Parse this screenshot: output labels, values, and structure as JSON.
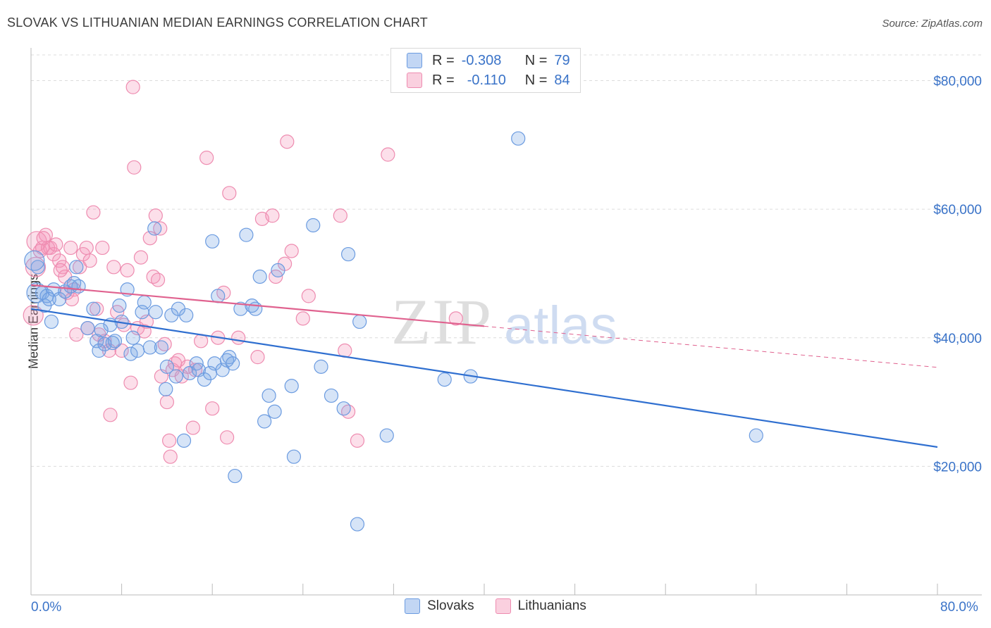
{
  "title": "SLOVAK VS LITHUANIAN MEDIAN EARNINGS CORRELATION CHART",
  "source": "Source: ZipAtlas.com",
  "watermark": "ZIPatlas",
  "colors": {
    "slovak_fill": "rgba(120,165,230,0.30)",
    "slovak_stroke": "#6b9be0",
    "slovak_line": "#2f6fd0",
    "lith_fill": "rgba(245,150,185,0.30)",
    "lith_stroke": "#ee8cb0",
    "lith_line": "#e0628f",
    "axis_text": "#3a73c8",
    "grid": "#dcdcdc"
  },
  "legend": {
    "row1": {
      "r_label": "R =",
      "r_value": "-0.308",
      "n_label": "N =",
      "n_value": "79"
    },
    "row2": {
      "r_label": "R =",
      "r_value": "-0.110",
      "n_label": "N =",
      "n_value": "84"
    }
  },
  "bottom_legend": {
    "series1": "Slovaks",
    "series2": "Lithuanians"
  },
  "chart_data": {
    "type": "scatter",
    "xlabel": "",
    "ylabel": "Median Earnings",
    "xlim": [
      0,
      80
    ],
    "ylim": [
      0,
      84000
    ],
    "x_tick_labels": [
      "0.0%",
      "80.0%"
    ],
    "y_ticks": [
      20000,
      40000,
      60000,
      80000
    ],
    "y_tick_labels": [
      "$20,000",
      "$40,000",
      "$60,000",
      "$80,000"
    ],
    "grid": true,
    "series": [
      {
        "name": "Slovaks",
        "r": -0.308,
        "n": 79,
        "trend": {
          "x": [
            0,
            80
          ],
          "y": [
            44500,
            23000
          ]
        },
        "points": [
          [
            0.5,
            47000
          ],
          [
            0.6,
            51000
          ],
          [
            1.0,
            47000
          ],
          [
            1.2,
            45000
          ],
          [
            1.4,
            46500
          ],
          [
            1.8,
            42500
          ],
          [
            2.0,
            47500
          ],
          [
            2.5,
            46000
          ],
          [
            3.0,
            47200
          ],
          [
            3.5,
            48000
          ],
          [
            4.0,
            51000
          ],
          [
            4.2,
            48000
          ],
          [
            5.0,
            41500
          ],
          [
            5.5,
            44500
          ],
          [
            5.8,
            39500
          ],
          [
            6.0,
            38000
          ],
          [
            6.5,
            39000
          ],
          [
            7.0,
            42000
          ],
          [
            7.4,
            39500
          ],
          [
            7.8,
            45000
          ],
          [
            8.0,
            42500
          ],
          [
            8.5,
            47500
          ],
          [
            8.8,
            37500
          ],
          [
            9.0,
            40000
          ],
          [
            9.4,
            38000
          ],
          [
            9.8,
            44000
          ],
          [
            10.0,
            45500
          ],
          [
            10.5,
            38500
          ],
          [
            10.9,
            57000
          ],
          [
            11.0,
            44000
          ],
          [
            11.5,
            38500
          ],
          [
            11.9,
            32000
          ],
          [
            12.0,
            35500
          ],
          [
            12.4,
            43500
          ],
          [
            12.8,
            34000
          ],
          [
            13.0,
            44500
          ],
          [
            13.5,
            24000
          ],
          [
            13.7,
            43500
          ],
          [
            14.0,
            34500
          ],
          [
            14.6,
            36000
          ],
          [
            14.8,
            35000
          ],
          [
            15.3,
            33500
          ],
          [
            15.8,
            34500
          ],
          [
            16.0,
            55000
          ],
          [
            16.2,
            36000
          ],
          [
            16.5,
            46500
          ],
          [
            16.9,
            35000
          ],
          [
            17.3,
            36500
          ],
          [
            17.5,
            37000
          ],
          [
            17.8,
            36000
          ],
          [
            18.0,
            18500
          ],
          [
            18.5,
            44500
          ],
          [
            19.0,
            56000
          ],
          [
            19.5,
            45000
          ],
          [
            19.8,
            44500
          ],
          [
            20.2,
            49500
          ],
          [
            20.6,
            27000
          ],
          [
            21.0,
            31000
          ],
          [
            21.5,
            28500
          ],
          [
            21.8,
            50500
          ],
          [
            23.0,
            32500
          ],
          [
            23.2,
            21500
          ],
          [
            24.9,
            57500
          ],
          [
            25.6,
            35500
          ],
          [
            26.5,
            31000
          ],
          [
            27.6,
            29000
          ],
          [
            28.0,
            53000
          ],
          [
            28.8,
            11000
          ],
          [
            29.0,
            42500
          ],
          [
            31.4,
            24800
          ],
          [
            36.5,
            33500
          ],
          [
            38.8,
            34000
          ],
          [
            43.0,
            71000
          ],
          [
            64.0,
            24800
          ],
          [
            0.3,
            52000
          ],
          [
            1.6,
            46000
          ],
          [
            3.8,
            48500
          ],
          [
            6.2,
            41200
          ],
          [
            7.2,
            39200
          ]
        ]
      },
      {
        "name": "Lithuanians",
        "r": -0.11,
        "n": 84,
        "trend": {
          "x": [
            0,
            40
          ],
          "y": [
            48200,
            41800
          ]
        },
        "trend_ext": {
          "x": [
            40,
            80
          ],
          "y": [
            41800,
            35400
          ]
        },
        "points": [
          [
            0.2,
            43500
          ],
          [
            0.5,
            55000
          ],
          [
            0.8,
            53500
          ],
          [
            1.0,
            54000
          ],
          [
            1.3,
            56000
          ],
          [
            1.5,
            54000
          ],
          [
            1.7,
            54000
          ],
          [
            2.0,
            53000
          ],
          [
            2.2,
            54500
          ],
          [
            2.5,
            52000
          ],
          [
            2.8,
            51000
          ],
          [
            3.0,
            49500
          ],
          [
            3.2,
            47000
          ],
          [
            3.5,
            54000
          ],
          [
            3.8,
            47500
          ],
          [
            4.0,
            40500
          ],
          [
            4.3,
            51000
          ],
          [
            4.6,
            53000
          ],
          [
            4.9,
            54000
          ],
          [
            5.0,
            41500
          ],
          [
            5.2,
            52000
          ],
          [
            5.5,
            59500
          ],
          [
            5.8,
            44500
          ],
          [
            6.0,
            40500
          ],
          [
            6.3,
            54000
          ],
          [
            6.5,
            39500
          ],
          [
            6.9,
            38000
          ],
          [
            7.0,
            28000
          ],
          [
            7.3,
            51000
          ],
          [
            7.6,
            44000
          ],
          [
            8.0,
            38000
          ],
          [
            8.2,
            42000
          ],
          [
            8.5,
            50500
          ],
          [
            8.8,
            33000
          ],
          [
            9.0,
            79000
          ],
          [
            9.1,
            66500
          ],
          [
            9.4,
            41500
          ],
          [
            9.7,
            52500
          ],
          [
            10.0,
            41000
          ],
          [
            10.2,
            42500
          ],
          [
            10.5,
            55500
          ],
          [
            10.8,
            49500
          ],
          [
            11.0,
            59000
          ],
          [
            11.2,
            49000
          ],
          [
            11.4,
            57000
          ],
          [
            11.5,
            34000
          ],
          [
            11.8,
            39000
          ],
          [
            12.0,
            30000
          ],
          [
            12.2,
            24000
          ],
          [
            12.3,
            21500
          ],
          [
            12.5,
            35000
          ],
          [
            12.7,
            36000
          ],
          [
            13.0,
            36500
          ],
          [
            13.3,
            34000
          ],
          [
            13.8,
            35500
          ],
          [
            14.3,
            26000
          ],
          [
            14.5,
            35000
          ],
          [
            15.0,
            39500
          ],
          [
            15.5,
            68000
          ],
          [
            16.0,
            29000
          ],
          [
            16.5,
            40000
          ],
          [
            17.0,
            47000
          ],
          [
            17.3,
            24500
          ],
          [
            17.5,
            62500
          ],
          [
            18.3,
            40000
          ],
          [
            20.0,
            37000
          ],
          [
            20.4,
            58500
          ],
          [
            21.3,
            59000
          ],
          [
            21.6,
            49500
          ],
          [
            22.4,
            51500
          ],
          [
            22.6,
            70500
          ],
          [
            23.0,
            53500
          ],
          [
            24.0,
            43000
          ],
          [
            24.5,
            46500
          ],
          [
            27.3,
            59000
          ],
          [
            27.7,
            38000
          ],
          [
            28.0,
            28500
          ],
          [
            28.8,
            24000
          ],
          [
            31.5,
            68500
          ],
          [
            37.5,
            43000
          ],
          [
            0.4,
            51000
          ],
          [
            1.1,
            55500
          ],
          [
            2.6,
            50500
          ],
          [
            3.6,
            46000
          ]
        ]
      }
    ]
  }
}
